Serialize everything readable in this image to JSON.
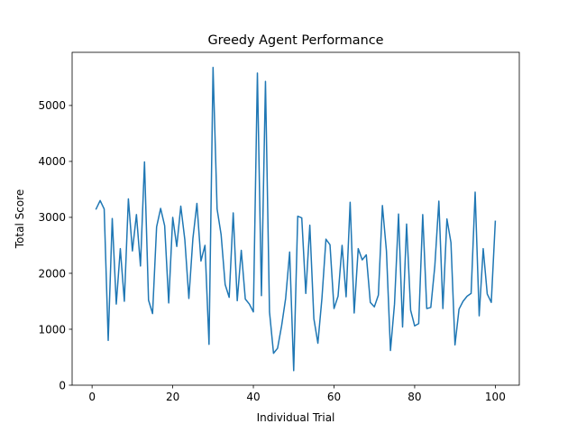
{
  "chart_data": {
    "type": "line",
    "title": "Greedy Agent Performance",
    "xlabel": "Individual Trial",
    "ylabel": "Total Score",
    "xlim": [
      -4.95,
      105.95
    ],
    "ylim": [
      0,
      5950
    ],
    "xticks": [
      0,
      20,
      40,
      60,
      80,
      100
    ],
    "yticks": [
      0,
      1000,
      2000,
      3000,
      4000,
      5000
    ],
    "xtick_labels": [
      "0",
      "20",
      "40",
      "60",
      "80",
      "100"
    ],
    "ytick_labels": [
      "0",
      "1000",
      "2000",
      "3000",
      "4000",
      "5000"
    ],
    "grid": false,
    "line_color": "#1f77b4",
    "series": [
      {
        "x": [
          1,
          2,
          3,
          4,
          5,
          6,
          7,
          8,
          9,
          10,
          11,
          12,
          13,
          14,
          15,
          16,
          17,
          18,
          19,
          20,
          21,
          22,
          23,
          24,
          25,
          26,
          27,
          28,
          29,
          30,
          31,
          32,
          33,
          34,
          35,
          36,
          37,
          38,
          39,
          40,
          41,
          42,
          43,
          44,
          45,
          46,
          47,
          48,
          49,
          50,
          51,
          52,
          53,
          54,
          55,
          56,
          57,
          58,
          59,
          60,
          61,
          62,
          63,
          64,
          65,
          66,
          67,
          68,
          69,
          70,
          71,
          72,
          73,
          74,
          75,
          76,
          77,
          78,
          79,
          80,
          81,
          82,
          83,
          84,
          85,
          86,
          87,
          88,
          89,
          90,
          91,
          92,
          93,
          94,
          95,
          96,
          97,
          98,
          99,
          100
        ],
        "values": [
          3150,
          3300,
          3150,
          800,
          2980,
          1450,
          2440,
          1500,
          3330,
          2400,
          3050,
          2130,
          3990,
          1520,
          1280,
          2830,
          3160,
          2850,
          1470,
          3000,
          2480,
          3200,
          2600,
          1550,
          2620,
          3250,
          2220,
          2500,
          730,
          5680,
          3150,
          2690,
          1800,
          1570,
          3080,
          1510,
          2410,
          1540,
          1450,
          1310,
          5580,
          1600,
          5430,
          1310,
          570,
          660,
          1060,
          1550,
          2380,
          260,
          3020,
          2990,
          1640,
          2860,
          1190,
          750,
          1550,
          2610,
          2510,
          1370,
          1590,
          2500,
          1580,
          3270,
          1290,
          2440,
          2240,
          2330,
          1480,
          1400,
          1610,
          3210,
          2400,
          620,
          1450,
          3060,
          1040,
          2880,
          1340,
          1060,
          1100,
          3050,
          1370,
          1390,
          2130,
          3290,
          1370,
          2970,
          2550,
          720,
          1360,
          1500,
          1590,
          1640,
          3450,
          1240,
          2440,
          1630,
          1480,
          2930
        ]
      }
    ]
  }
}
